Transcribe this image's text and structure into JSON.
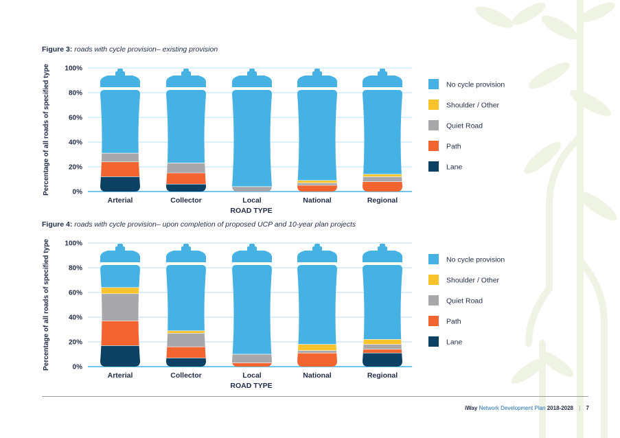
{
  "figures": [
    {
      "fig_label": "Figure 3:",
      "fig_caption": "roads with cycle provision– existing provision"
    },
    {
      "fig_label": "Figure 4:",
      "fig_caption": "roads with cycle provision– upon completion of proposed UCP and 10-year plan projects"
    }
  ],
  "chart_data": [
    {
      "type": "bar",
      "title": "roads with cycle provision– existing provision",
      "xlabel": "ROAD TYPE",
      "ylabel": "Percentage of all roads of specified type",
      "ylim": [
        0,
        100
      ],
      "yticks": [
        "0%",
        "20%",
        "40%",
        "60%",
        "80%",
        "100%"
      ],
      "categories": [
        "Arterial",
        "Collector",
        "Local",
        "National",
        "Regional"
      ],
      "series": [
        {
          "name": "Lane",
          "color": "#0d4163",
          "values": [
            12,
            6,
            0,
            0,
            0
          ]
        },
        {
          "name": "Path",
          "color": "#f26430",
          "values": [
            12,
            9,
            0,
            5,
            8
          ]
        },
        {
          "name": "Quiet Road",
          "color": "#a8a8aa",
          "values": [
            7,
            8,
            4,
            2,
            4
          ]
        },
        {
          "name": "Shoulder / Other",
          "color": "#f7c52b",
          "values": [
            0,
            0,
            0,
            2,
            2
          ]
        },
        {
          "name": "No cycle provision",
          "color": "#45b2e3",
          "values": [
            69,
            77,
            96,
            91,
            86
          ]
        }
      ],
      "legend": [
        "No cycle provision",
        "Shoulder / Other",
        "Quiet Road",
        "Path",
        "Lane"
      ],
      "legend_position": "right",
      "grid": true
    },
    {
      "type": "bar",
      "title": "roads with cycle provision– upon completion of proposed UCP and 10-year plan projects",
      "xlabel": "ROAD TYPE",
      "ylabel": "Percentage of all roads of specified type",
      "ylim": [
        0,
        100
      ],
      "yticks": [
        "0%",
        "20%",
        "40%",
        "60%",
        "80%",
        "100%"
      ],
      "categories": [
        "Arterial",
        "Collector",
        "Local",
        "National",
        "Regional"
      ],
      "series": [
        {
          "name": "Lane",
          "color": "#0d4163",
          "values": [
            17,
            7,
            0,
            0,
            11
          ]
        },
        {
          "name": "Path",
          "color": "#f26430",
          "values": [
            20,
            9,
            3,
            11,
            3
          ]
        },
        {
          "name": "Quiet Road",
          "color": "#a8a8aa",
          "values": [
            22,
            11,
            7,
            2,
            4
          ]
        },
        {
          "name": "Shoulder / Other",
          "color": "#f7c52b",
          "values": [
            5,
            2,
            0,
            5,
            4
          ]
        },
        {
          "name": "No cycle provision",
          "color": "#45b2e3",
          "values": [
            36,
            71,
            90,
            82,
            78
          ]
        }
      ],
      "legend": [
        "No cycle provision",
        "Shoulder / Other",
        "Quiet Road",
        "Path",
        "Lane"
      ],
      "legend_position": "right",
      "grid": true
    }
  ],
  "footer": {
    "brand": "iWay",
    "text": "Network Development Plan",
    "years": "2018-2028",
    "page_number": "7"
  }
}
